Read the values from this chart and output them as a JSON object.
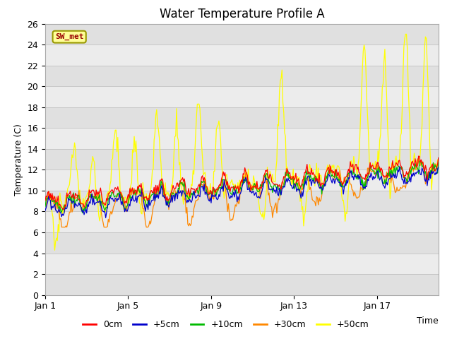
{
  "title": "Water Temperature Profile A",
  "xlabel": "Time",
  "ylabel": "Temperature (C)",
  "ylim": [
    0,
    26
  ],
  "yticks": [
    0,
    2,
    4,
    6,
    8,
    10,
    12,
    14,
    16,
    18,
    20,
    22,
    24,
    26
  ],
  "xtick_labels": [
    "Jan 1",
    "Jan 5",
    "Jan 9",
    "Jan 13",
    "Jan 17"
  ],
  "xtick_positions": [
    0,
    96,
    192,
    288,
    384
  ],
  "total_points": 456,
  "background_color": "#ffffff",
  "band_colors": [
    "#e0e0e0",
    "#ececec"
  ],
  "line_colors": [
    "#ff0000",
    "#0000cc",
    "#00bb00",
    "#ff8800",
    "#ffff00"
  ],
  "line_labels": [
    "0cm",
    "+5cm",
    "+10cm",
    "+30cm",
    "+50cm"
  ],
  "legend_label": "SW_met",
  "legend_box_color": "#ffff99",
  "legend_text_color": "#990000",
  "legend_border_color": "#999900",
  "title_fontsize": 12,
  "axis_label_fontsize": 9,
  "tick_fontsize": 9,
  "seed": 77
}
